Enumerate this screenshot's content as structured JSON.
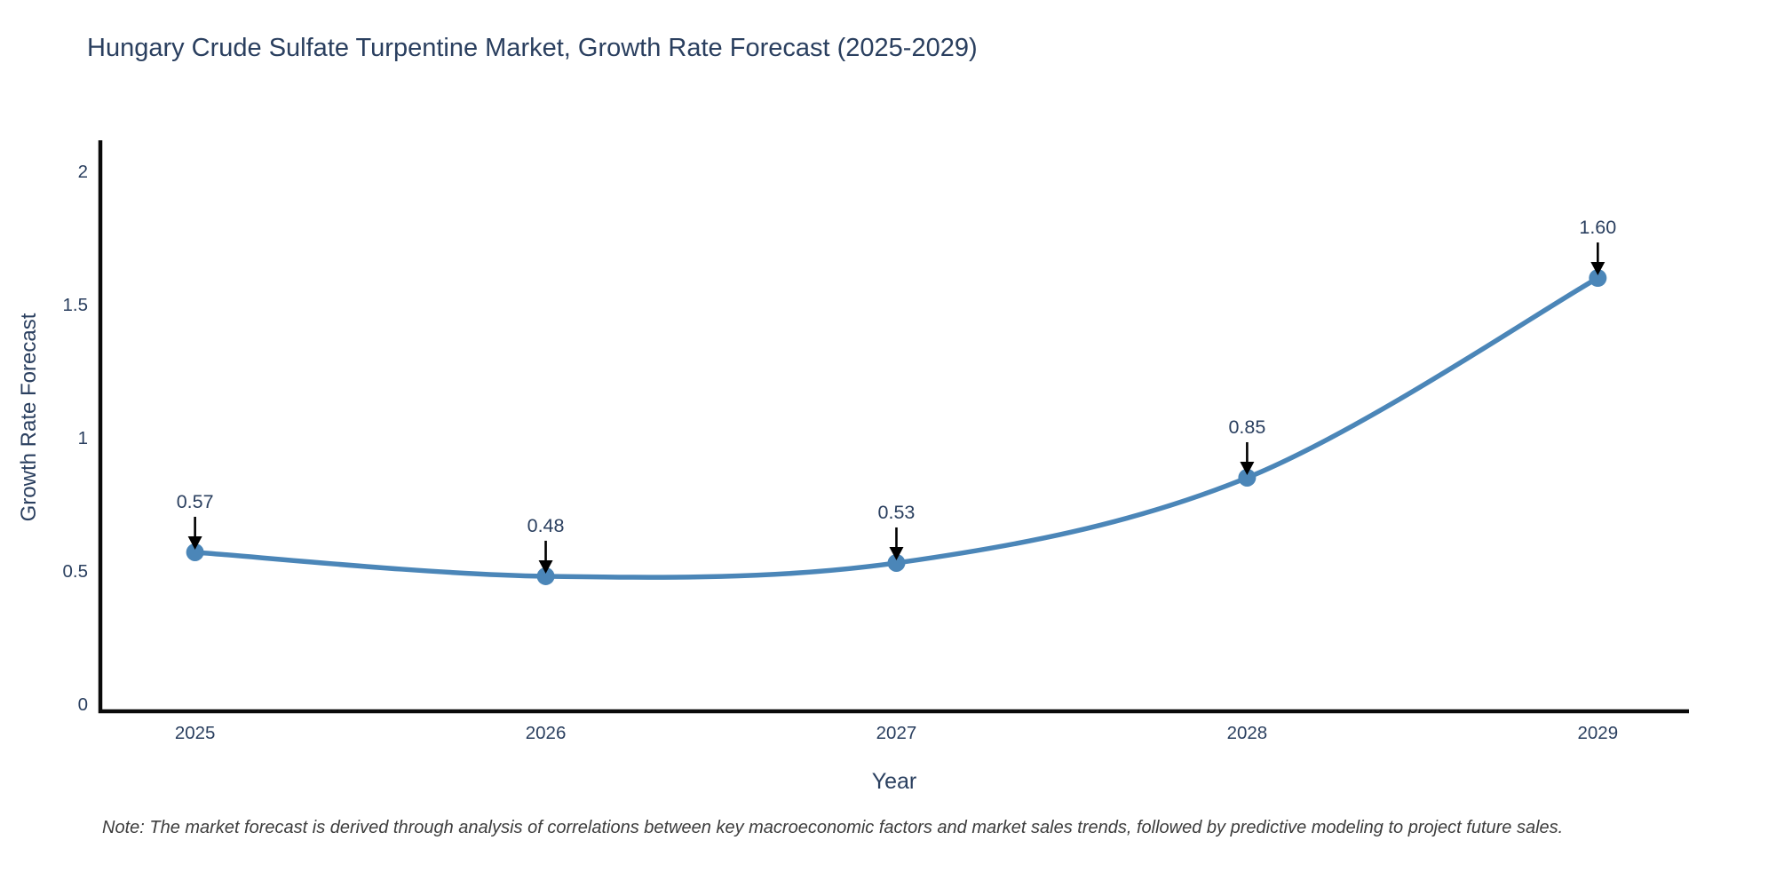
{
  "title": "Hungary Crude Sulfate Turpentine Market, Growth Rate Forecast (2025-2029)",
  "note": "Note: The market forecast is derived through analysis of correlations between key macroeconomic factors and market sales trends, followed by predictive modeling to project future sales.",
  "colors": {
    "text": "#2a3f5f",
    "axis_line": "#0a0a0a",
    "series": "#4b86b8",
    "arrow": "#000000",
    "note_text": "#3d3d3d",
    "background": "#ffffff"
  },
  "chart_data": {
    "type": "line",
    "title": "Hungary Crude Sulfate Turpentine Market, Growth Rate Forecast (2025-2029)",
    "xlabel": "Year",
    "ylabel": "Growth Rate Forecast",
    "x": [
      2025,
      2026,
      2027,
      2028,
      2029
    ],
    "values": [
      0.57,
      0.48,
      0.53,
      0.85,
      1.6
    ],
    "point_labels": [
      "0.57",
      "0.48",
      "0.53",
      "0.85",
      "1.60"
    ],
    "x_tick_labels": [
      "2025",
      "2026",
      "2027",
      "2028",
      "2029"
    ],
    "y_ticks": [
      0,
      0.5,
      1,
      1.5,
      2
    ],
    "y_tick_labels": [
      "0",
      "0.5",
      "1",
      "1.5",
      "2"
    ],
    "xlim": [
      2024.73,
      2029.26
    ],
    "ylim": [
      -0.027,
      2.117
    ],
    "grid": false,
    "legend": false,
    "line_shape": "spline",
    "annotation_style": "value-label-with-down-arrow"
  }
}
